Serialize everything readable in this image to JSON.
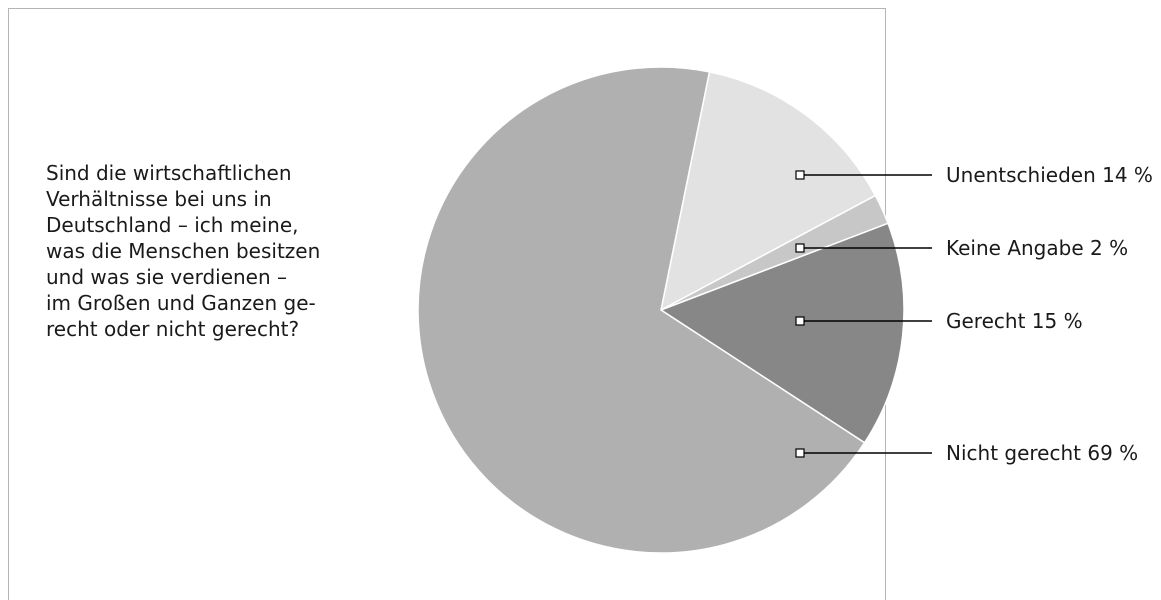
{
  "question": {
    "lines": [
      "Sind die wirtschaftlichen",
      "Verhältnisse bei uns in",
      "Deutschland – ich meine,",
      "was die Menschen besitzen",
      "und was sie verdienen –",
      "im Großen und Ganzen ge-",
      "recht oder nicht gerecht?"
    ]
  },
  "chart_data": {
    "type": "pie",
    "title": "",
    "legend": "right",
    "slices": [
      {
        "label": "Unentschieden 14 %",
        "value": 14,
        "color": "#e2e2e2"
      },
      {
        "label": "Keine Angabe 2 %",
        "value": 2,
        "color": "#c7c7c7"
      },
      {
        "label": "Gerecht 15 %",
        "value": 15,
        "color": "#878787"
      },
      {
        "label": "Nicht gerecht 69 %",
        "value": 69,
        "color": "#b0b0b0"
      }
    ]
  }
}
